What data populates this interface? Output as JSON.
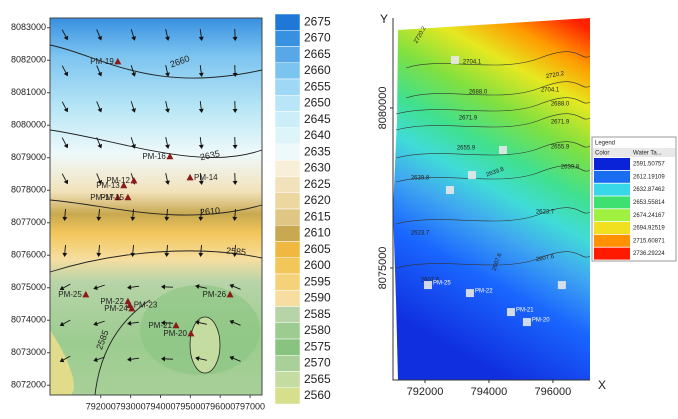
{
  "chart_data": [
    {
      "type": "contour",
      "xlim": [
        790300,
        797400
      ],
      "ylim": [
        8071700,
        8083300
      ],
      "xticks": [
        792000,
        793000,
        794000,
        795000,
        796000,
        797000
      ],
      "yticks": [
        8072000,
        8073000,
        8074000,
        8075000,
        8076000,
        8077000,
        8078000,
        8079000,
        8080000,
        8081000,
        8082000,
        8083000
      ],
      "colorbar": {
        "levels": [
          2675,
          2670,
          2665,
          2660,
          2655,
          2650,
          2645,
          2640,
          2635,
          2630,
          2625,
          2620,
          2615,
          2610,
          2605,
          2600,
          2595,
          2590,
          2585,
          2580,
          2575,
          2570,
          2565,
          2560
        ],
        "colors": [
          "#1f78d8",
          "#3890e0",
          "#58a8e8",
          "#7cc4f0",
          "#9ed8f4",
          "#b8e6f6",
          "#cceef8",
          "#ddf4f9",
          "#eef9fa",
          "#f8efd8",
          "#f2e2bc",
          "#ecd7a0",
          "#e0c685",
          "#c8a850",
          "#f0b840",
          "#f3c65a",
          "#f5d27a",
          "#f6dea0",
          "#b7d4a8",
          "#9ccc90",
          "#88c480",
          "#a8d098",
          "#c4dca0",
          "#d6df8c"
        ]
      },
      "contour_labels": [
        2660,
        2635,
        2610,
        2585,
        2585
      ],
      "points": [
        {
          "name": "PM-19",
          "x": 792570,
          "y": 8081950
        },
        {
          "name": "PM-16",
          "x": 794315,
          "y": 8079030
        },
        {
          "name": "PM-12",
          "x": 793110,
          "y": 8078290
        },
        {
          "name": "PM-13",
          "x": 792770,
          "y": 8078140
        },
        {
          "name": "PM-14",
          "x": 794990,
          "y": 8078380
        },
        {
          "name": "PM-17",
          "x": 792570,
          "y": 8077770
        },
        {
          "name": "PM-15",
          "x": 792910,
          "y": 8077770
        },
        {
          "name": "PM-25",
          "x": 791500,
          "y": 8074780
        },
        {
          "name": "PM-22",
          "x": 792910,
          "y": 8074570
        },
        {
          "name": "PM-23",
          "x": 792970,
          "y": 8074450
        },
        {
          "name": "PM-24",
          "x": 793040,
          "y": 8074350
        },
        {
          "name": "PM-21",
          "x": 794520,
          "y": 8073830
        },
        {
          "name": "PM-20",
          "x": 795020,
          "y": 8073580
        },
        {
          "name": "PM-26",
          "x": 796330,
          "y": 8074780
        }
      ]
    },
    {
      "type": "contour",
      "xlabel": "X",
      "ylabel": "Y",
      "xlim": [
        791000,
        797160
      ],
      "ylim": [
        8071500,
        8082810
      ],
      "xticks": [
        792000,
        794000,
        796000
      ],
      "yticks": [
        8075000,
        8080000
      ],
      "legend": {
        "title": "Legend",
        "headers": [
          "Color",
          "Water Ta..."
        ],
        "values": [
          2591.50757,
          2612.19109,
          2632.87462,
          2653.55814,
          2674.24167,
          2694.92519,
          2715.60871,
          2736.29224
        ],
        "colors": [
          "#0a22d8",
          "#1a6cf0",
          "#38d8e8",
          "#3ee070",
          "#a0f040",
          "#f0e020",
          "#ff9000",
          "#ff1a00"
        ]
      },
      "contour_labels": [
        "2720.2",
        "2704.1",
        "2720.2",
        "2688.0",
        "2704.1",
        "2688.0",
        "2671.9",
        "2671.9",
        "2655.9",
        "2655.9",
        "2639.8",
        "2639.8",
        "2639.8",
        "2623.7",
        "2623.7",
        "2607.6",
        "2607.6",
        "2607.6"
      ],
      "points": [
        {
          "name": "PM-25",
          "x": 792094,
          "y": 8074466
        },
        {
          "name": "PM-22",
          "x": 793406,
          "y": 8074216
        },
        {
          "name": "PM-21",
          "x": 794688,
          "y": 8073622
        },
        {
          "name": "PM-20",
          "x": 795188,
          "y": 8073310
        },
        {
          "x": 792938,
          "y": 8081498
        },
        {
          "x": 794438,
          "y": 8078685
        },
        {
          "x": 792781,
          "y": 8077435
        },
        {
          "x": 793469,
          "y": 8077904
        },
        {
          "x": 796281,
          "y": 8074466
        }
      ]
    }
  ]
}
